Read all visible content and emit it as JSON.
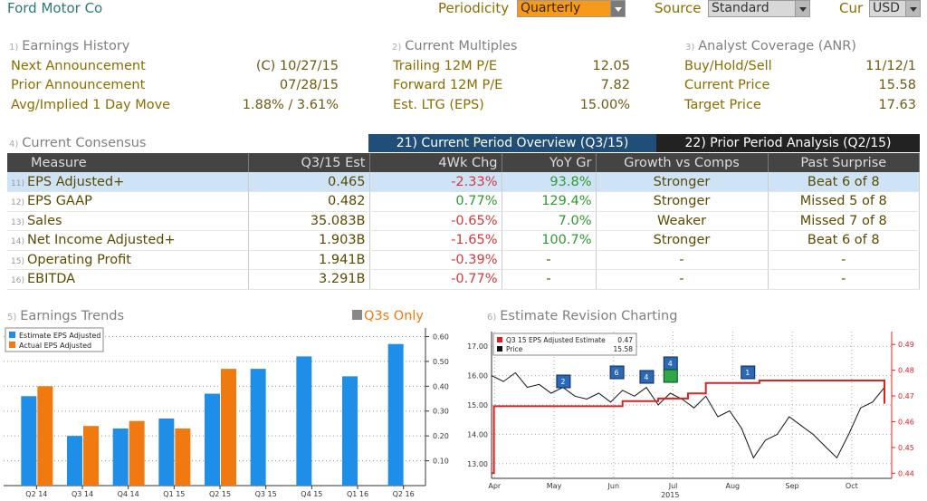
{
  "header": {
    "security": "Ford Motor Co",
    "periodicity_label": "Periodicity",
    "periodicity_value": "Quarterly",
    "source_label": "Source",
    "source_value": "Standard",
    "cur_label": "Cur",
    "cur_value": "USD"
  },
  "earnings_history": {
    "num": "1)",
    "title": "Earnings History",
    "rows": [
      {
        "label": "Next Announcement",
        "value": "(C)  10/27/15"
      },
      {
        "label": "Prior Announcement",
        "value": "07/28/15"
      },
      {
        "label": "Avg/Implied 1 Day Move",
        "value": "1.88% / 3.61%"
      }
    ]
  },
  "current_multiples": {
    "num": "2)",
    "title": "Current Multiples",
    "rows": [
      {
        "label": "Trailing 12M P/E",
        "value": "12.05"
      },
      {
        "label": "Forward 12M P/E",
        "value": "7.82"
      },
      {
        "label": "Est. LTG (EPS)",
        "value": "15.00%"
      }
    ]
  },
  "analyst_coverage": {
    "num": "3)",
    "title": "Analyst Coverage (ANR)",
    "rows": [
      {
        "label": "Buy/Hold/Sell",
        "value": "11/12/1"
      },
      {
        "label": "Current Price",
        "value": "15.58"
      },
      {
        "label": "Target Price",
        "value": "17.63"
      }
    ]
  },
  "consensus": {
    "num": "4)",
    "title": "Current Consensus",
    "tab_active": "21) Current Period Overview (Q3/15)",
    "tab_inactive": "22) Prior Period Analysis (Q2/15)",
    "columns": [
      "Measure",
      "Q3/15 Est",
      "4Wk Chg",
      "YoY Gr",
      "Growth vs Comps",
      "Past Surprise"
    ],
    "rows": [
      {
        "n": "11)",
        "measure": "EPS Adjusted+",
        "est": "0.465",
        "chg": "-2.33%",
        "yoy": "93.8%",
        "comps": "Stronger",
        "surprise": "Beat 6 of 8"
      },
      {
        "n": "12)",
        "measure": "EPS GAAP",
        "est": "0.482",
        "chg": "0.77%",
        "yoy": "129.4%",
        "comps": "Stronger",
        "surprise": "Missed 5 of 8"
      },
      {
        "n": "13)",
        "measure": "Sales",
        "est": "35.083B",
        "chg": "-0.65%",
        "yoy": "7.0%",
        "comps": "Weaker",
        "surprise": "Missed 7 of 8"
      },
      {
        "n": "14)",
        "measure": "Net Income Adjusted+",
        "est": "1.903B",
        "chg": "-1.65%",
        "yoy": "100.7%",
        "comps": "Stronger",
        "surprise": "Beat 6 of 8"
      },
      {
        "n": "15)",
        "measure": "Operating Profit",
        "est": "1.941B",
        "chg": "-0.39%",
        "yoy": "-",
        "comps": "-",
        "surprise": "-"
      },
      {
        "n": "16)",
        "measure": "EBITDA",
        "est": "3.291B",
        "chg": "-0.77%",
        "yoy": "-",
        "comps": "-",
        "surprise": "-"
      }
    ]
  },
  "earnings_trends": {
    "num": "5)",
    "title": "Earnings Trends",
    "q3s_label": "Q3s Only",
    "legend": [
      "Estimate EPS Adjusted",
      "Actual EPS Adjusted"
    ],
    "colors": {
      "estimate": "#1f8ee8",
      "actual": "#f07a10"
    }
  },
  "estimate_revision": {
    "num": "6)",
    "title": "Estimate Revision Charting",
    "legend_estimate": "Q3 15 EPS Adjusted Estimate",
    "legend_estimate_val": "0.47",
    "legend_price": "Price",
    "legend_price_val": "15.58",
    "year_label": "2015",
    "colors": {
      "estimate": "#e02020",
      "price": "#111111"
    }
  },
  "chart_data": [
    {
      "type": "bar",
      "categories": [
        "Q2 14",
        "Q3 14",
        "Q4 14",
        "Q1 15",
        "Q2 15",
        "Q3 15",
        "Q4 15",
        "Q1 16",
        "Q2 16"
      ],
      "series": [
        {
          "name": "Estimate EPS Adjusted",
          "values": [
            0.36,
            0.2,
            0.23,
            0.27,
            0.37,
            0.47,
            0.52,
            0.44,
            0.57
          ]
        },
        {
          "name": "Actual EPS Adjusted",
          "values": [
            0.4,
            0.24,
            0.26,
            0.23,
            0.47,
            null,
            null,
            null,
            null
          ]
        }
      ],
      "yticks": [
        0.1,
        0.2,
        0.3,
        0.4,
        0.5,
        0.6
      ],
      "ylim": [
        0,
        0.62
      ],
      "legend": "top-left",
      "grid": true
    },
    {
      "type": "line",
      "x_ticks": [
        "Apr",
        "May",
        "Jun",
        "Jul",
        "Aug",
        "Sep",
        "Oct"
      ],
      "y_left_ticks": [
        "13.00",
        "14.00",
        "15.00",
        "16.00",
        "17.00"
      ],
      "y_left_lim": [
        12.5,
        17.5
      ],
      "y_right_ticks": [
        "0.44",
        "0.45",
        "0.46",
        "0.47",
        "0.48",
        "0.49"
      ],
      "y_right_lim": [
        0.438,
        0.495
      ],
      "series": [
        {
          "name": "Q3 15 EPS Adjusted Estimate",
          "axis": "right",
          "x": [
            0,
            0.02,
            0.04,
            0.5,
            0.8,
            1.0,
            1.4,
            1.9,
            2.2,
            2.5,
            2.8,
            3.0,
            3.25,
            3.3,
            3.55,
            3.6,
            4.2,
            4.5,
            4.9,
            5.3,
            5.8,
            6.2,
            6.4,
            6.6
          ],
          "y": [
            0.44,
            0.44,
            0.466,
            0.466,
            0.466,
            0.466,
            0.466,
            0.466,
            0.468,
            0.468,
            0.469,
            0.469,
            0.469,
            0.471,
            0.471,
            0.475,
            0.475,
            0.476,
            0.476,
            0.476,
            0.476,
            0.476,
            0.476,
            0.467
          ]
        },
        {
          "name": "Price",
          "axis": "left",
          "x": [
            0,
            0.2,
            0.4,
            0.6,
            0.8,
            1.0,
            1.2,
            1.4,
            1.6,
            1.8,
            2.0,
            2.2,
            2.4,
            2.6,
            2.8,
            3.0,
            3.2,
            3.4,
            3.6,
            3.8,
            4.0,
            4.2,
            4.4,
            4.6,
            4.8,
            5.0,
            5.2,
            5.4,
            5.6,
            5.8,
            6.0,
            6.2,
            6.4,
            6.6
          ],
          "y": [
            16.0,
            15.8,
            16.1,
            15.6,
            15.7,
            15.4,
            15.6,
            15.3,
            15.2,
            15.4,
            15.1,
            15.5,
            15.3,
            15.6,
            15.0,
            15.4,
            15.2,
            14.9,
            15.3,
            14.6,
            14.8,
            14.2,
            13.2,
            13.8,
            14.0,
            14.6,
            14.3,
            14.0,
            13.6,
            13.2,
            14.0,
            14.9,
            15.1,
            15.6
          ]
        }
      ],
      "markers": [
        {
          "label": "2",
          "x": 1.2
        },
        {
          "label": "6",
          "x": 2.1
        },
        {
          "label": "4",
          "x": 2.6
        },
        {
          "label": "4",
          "x": 3.0
        },
        {
          "label": "1",
          "x": 4.3
        }
      ],
      "grid": true,
      "legend": "top-left"
    }
  ]
}
